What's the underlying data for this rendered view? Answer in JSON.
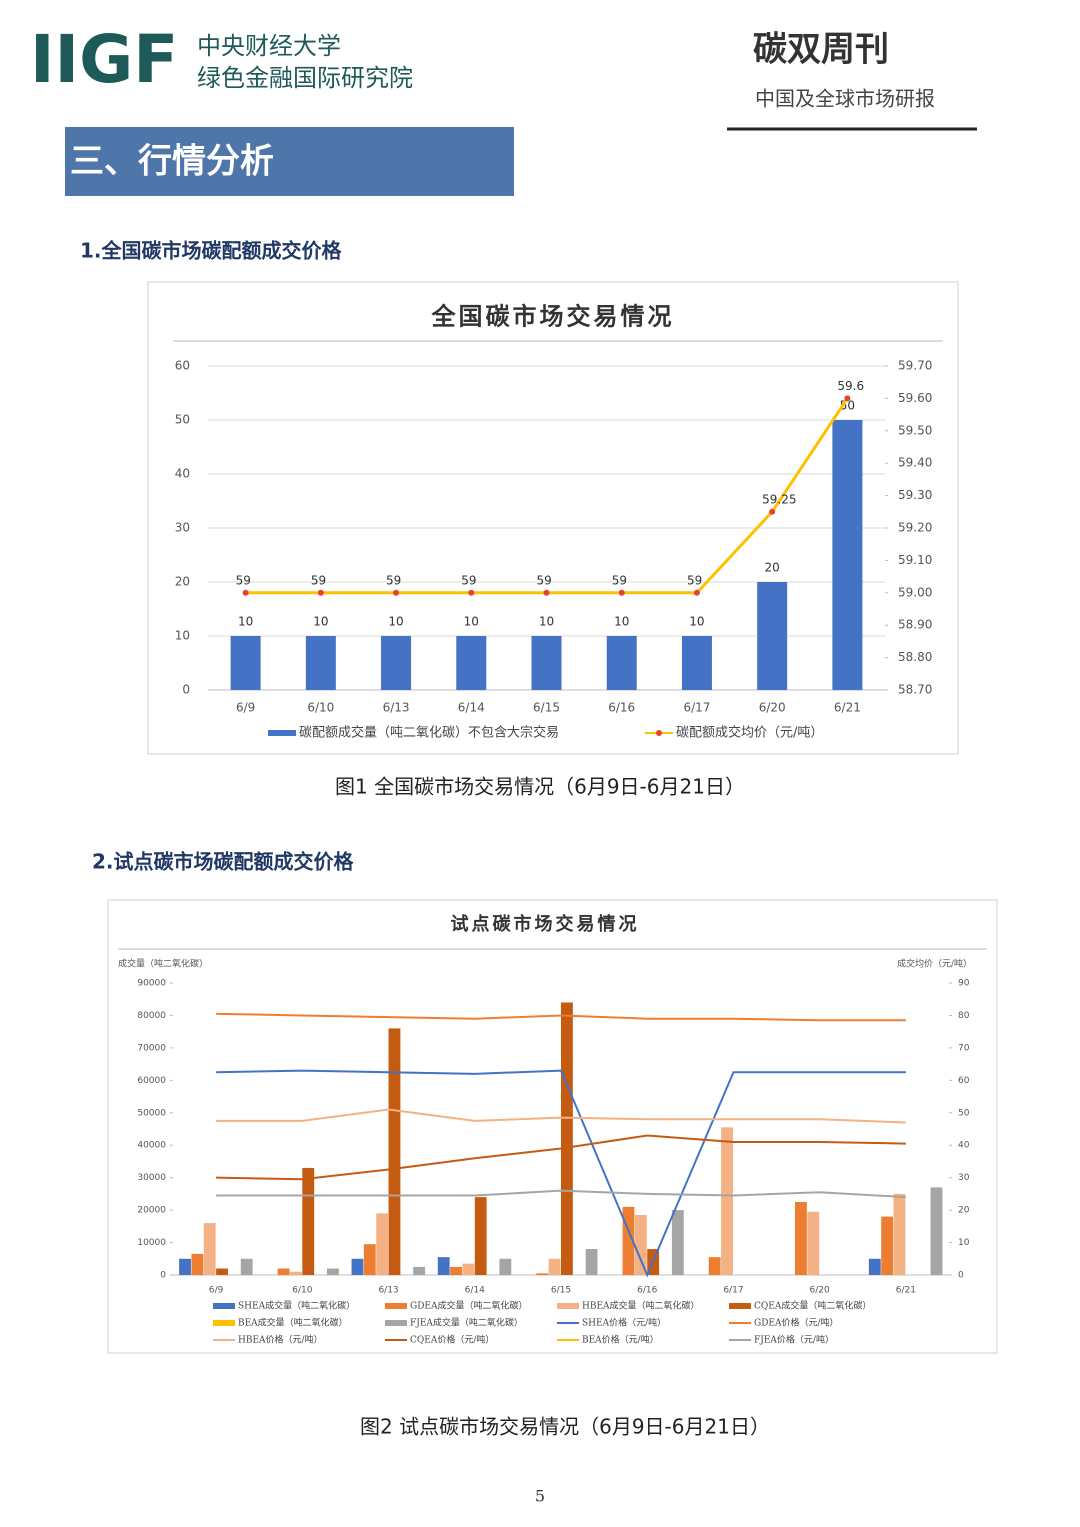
{
  "header": {
    "logo": "IIGF",
    "org_name": [
      "中央财经大学",
      "绿色金融国际研究院"
    ],
    "brand": "碳双周刊",
    "brand_subtitle": "中国及全球市场研报"
  },
  "section_title": "三、行情分析",
  "subsections": [
    "1.全国碳市场碳配额成交价格",
    "2.试点碳市场碳配额成交价格"
  ],
  "captions": [
    "图1 全国碳市场交易情况（6月9日-6月21日）",
    "图2 试点碳市场交易情况（6月9日-6月21日）"
  ],
  "page_number": "5",
  "chart_data": [
    {
      "type": "combo",
      "title": "全国碳市场交易情况",
      "categories": [
        "6/9",
        "6/10",
        "6/13",
        "6/14",
        "6/15",
        "6/16",
        "6/17",
        "6/20",
        "6/21"
      ],
      "series": [
        {
          "name": "碳配额成交量（吨二氧化碳）不包含大宗交易",
          "type": "bar",
          "color": "#4472c4",
          "values": [
            10,
            10,
            10,
            10,
            10,
            10,
            10,
            20,
            50
          ]
        },
        {
          "name": "碳配额成交均价（元/吨）",
          "type": "line",
          "axis": "y2",
          "color": "#ffc000",
          "marker_color": "#e8412c",
          "values": [
            59,
            59,
            59,
            59,
            59,
            59,
            59,
            59.25,
            59.6
          ]
        }
      ],
      "ylim": [
        0,
        60
      ],
      "yticks": [
        0,
        10,
        20,
        30,
        40,
        50,
        60
      ],
      "y2lim": [
        58.7,
        59.7
      ],
      "y2ticks": [
        {
          "value": 58.7,
          "label": "58.70"
        },
        {
          "value": 58.8,
          "label": "58.80"
        },
        {
          "value": 58.9,
          "label": "58.90"
        },
        {
          "value": 59.0,
          "label": "59.00"
        },
        {
          "value": 59.1,
          "label": "59.10"
        },
        {
          "value": 59.2,
          "label": "59.20"
        },
        {
          "value": 59.3,
          "label": "59.30"
        },
        {
          "value": 59.4,
          "label": "59.40"
        },
        {
          "value": 59.5,
          "label": "59.50"
        },
        {
          "value": 59.6,
          "label": "59.60"
        },
        {
          "value": 59.7,
          "label": "59.70"
        }
      ],
      "grid": true,
      "data_labels": true,
      "legend": "bottom"
    },
    {
      "type": "combo",
      "title": "试点碳市场交易情况",
      "y_label": "成交量（吨二氧化碳）",
      "y2_label": "成交均价（元/吨）",
      "categories": [
        "6/9",
        "6/10",
        "6/13",
        "6/14",
        "6/15",
        "6/16",
        "6/17",
        "6/20",
        "6/21"
      ],
      "series": [
        {
          "name": "SHEA成交量（吨二氧化碳）",
          "type": "bar",
          "color": "#4472c4",
          "values": [
            5000,
            0,
            5000,
            5500,
            0,
            0,
            0,
            0,
            5000
          ]
        },
        {
          "name": "GDEA成交量（吨二氧化碳）",
          "type": "bar",
          "color": "#ed7d31",
          "values": [
            6500,
            2000,
            9500,
            2500,
            500,
            21000,
            5500,
            22500,
            18000
          ]
        },
        {
          "name": "HBEA成交量（吨二氧化碳）",
          "type": "bar",
          "color": "#f4b183",
          "values": [
            16000,
            1000,
            19000,
            3500,
            5000,
            18500,
            45500,
            19500,
            25000
          ]
        },
        {
          "name": "CQEA成交量（吨二氧化碳）",
          "type": "bar",
          "color": "#c55a11",
          "values": [
            2000,
            33000,
            76000,
            24000,
            84000,
            8000,
            0,
            0,
            0
          ]
        },
        {
          "name": "BEA成交量（吨二氧化碳）",
          "type": "bar",
          "color": "#ffc000",
          "values": [
            0,
            0,
            0,
            0,
            0,
            0,
            0,
            0,
            0
          ]
        },
        {
          "name": "FJEA成交量（吨二氧化碳）",
          "type": "bar",
          "color": "#a5a5a5",
          "values": [
            5000,
            2000,
            2500,
            5000,
            8000,
            20000,
            0,
            0,
            27000
          ]
        },
        {
          "name": "SHEA价格（元/吨）",
          "type": "line",
          "axis": "y2",
          "color": "#4472c4",
          "values": [
            62.5,
            63,
            62.5,
            62,
            63,
            0,
            62.5,
            62.5,
            62.5
          ]
        },
        {
          "name": "GDEA价格（元/吨）",
          "type": "line",
          "axis": "y2",
          "color": "#ed7d31",
          "values": [
            80.5,
            80,
            79.5,
            79,
            80,
            79,
            79,
            78.5,
            78.5
          ]
        },
        {
          "name": "HBEA价格（元/吨）",
          "type": "line",
          "axis": "y2",
          "color": "#f4b183",
          "values": [
            47.5,
            47.5,
            51,
            47.5,
            48.5,
            48,
            48,
            48,
            47
          ]
        },
        {
          "name": "CQEA价格（元/吨）",
          "type": "line",
          "axis": "y2",
          "color": "#c55a11",
          "values": [
            30,
            29.5,
            32.5,
            36,
            39,
            43,
            41,
            41,
            40.5
          ]
        },
        {
          "name": "BEA价格（元/吨）",
          "type": "line",
          "axis": "y2",
          "color": "#ffc000",
          "values": [
            null,
            null,
            null,
            null,
            null,
            null,
            null,
            null,
            null
          ]
        },
        {
          "name": "FJEA价格（元/吨）",
          "type": "line",
          "axis": "y2",
          "color": "#a5a5a5",
          "values": [
            24.5,
            24.5,
            24.5,
            24.5,
            26,
            25,
            24.5,
            25.5,
            24
          ]
        }
      ],
      "ylim": [
        0,
        90000
      ],
      "yticks": [
        0,
        10000,
        20000,
        30000,
        40000,
        50000,
        60000,
        70000,
        80000,
        90000
      ],
      "y2lim": [
        0,
        90
      ],
      "y2ticks": [
        0,
        10,
        20,
        30,
        40,
        50,
        60,
        70,
        80,
        90
      ],
      "grid": false,
      "data_labels": false,
      "legend": "bottom"
    }
  ]
}
